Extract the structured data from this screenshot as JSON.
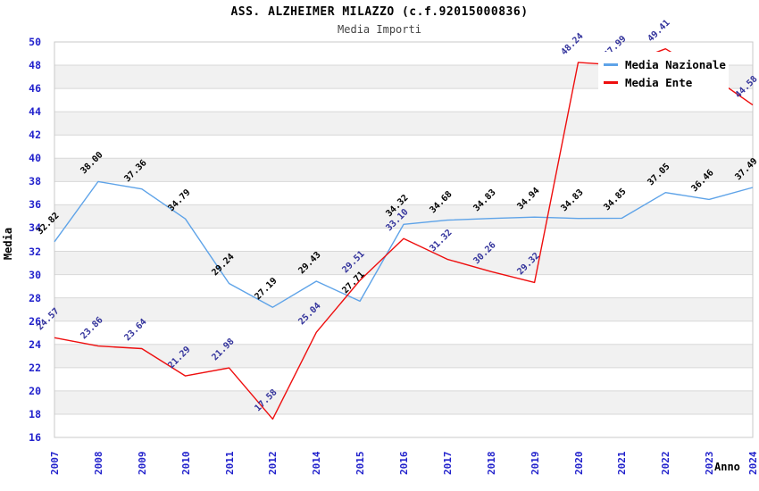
{
  "chart_data": {
    "type": "line",
    "title": "ASS. ALZHEIMER MILAZZO (c.f.92015000836)",
    "subtitle": "Media Importi",
    "xlabel": "Anno",
    "ylabel": "Media",
    "ylim": [
      16,
      50
    ],
    "ytick_step": 2,
    "grid": true,
    "banded_background": true,
    "legend_position": "top-right",
    "categories": [
      "2007",
      "2008",
      "2009",
      "2010",
      "2011",
      "2012",
      "2014",
      "2015",
      "2016",
      "2017",
      "2018",
      "2019",
      "2020",
      "2021",
      "2022",
      "2023",
      "2024"
    ],
    "series": [
      {
        "name": "Media Nazionale",
        "color": "#5ea3e8",
        "label_color": "#000000",
        "values": [
          32.82,
          38.0,
          37.36,
          34.79,
          29.24,
          27.19,
          29.43,
          27.71,
          34.32,
          34.68,
          34.83,
          34.94,
          34.83,
          34.85,
          37.05,
          36.46,
          37.49
        ],
        "point_labels": [
          "32.82",
          "38.00",
          "37.36",
          "34.79",
          "29.24",
          "27.19",
          "29.43",
          "27.71",
          "34.32",
          "34.68",
          "34.83",
          "34.94",
          "34.83",
          "34.85",
          "37.05",
          "36.46",
          "37.49"
        ]
      },
      {
        "name": "Media Ente",
        "color": "#ee0e0e",
        "label_color": "#32329b",
        "values": [
          24.57,
          23.86,
          23.64,
          21.29,
          21.98,
          17.58,
          25.04,
          29.51,
          33.1,
          31.32,
          30.26,
          29.32,
          48.24,
          47.99,
          49.41,
          47.2,
          44.58
        ],
        "point_labels": [
          "24.57",
          "23.86",
          "23.64",
          "21.29",
          "21.98",
          "17.58",
          "25.04",
          "29.51",
          "33.10",
          "31.32",
          "30.26",
          "29.32",
          "48.24",
          "47.99",
          "49.41",
          "",
          "44.58"
        ]
      }
    ],
    "notes": "Year 2013 absent from x axis; 2023 Media Ente label hidden behind legend (value estimated from line)."
  },
  "colors": {
    "tick_label": "#2222cc",
    "grid_line": "#d8d8d8",
    "band_gray": "#f1f1f1",
    "plot_border": "#c8c8c8",
    "background": "#ffffff"
  }
}
